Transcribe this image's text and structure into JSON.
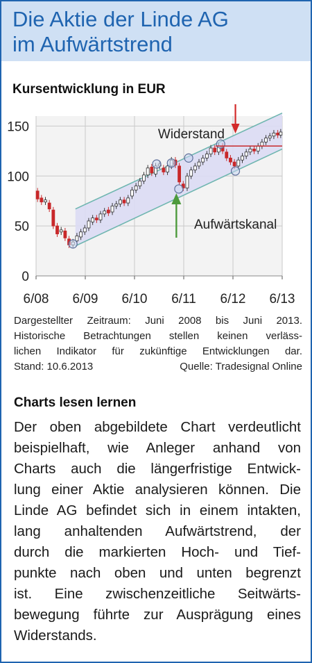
{
  "header": {
    "title_line1": "Die Aktie der Linde AG",
    "title_line2": "im Aufwärtstrend"
  },
  "chart_title": "Kursentwicklung in EUR",
  "chart_data": {
    "type": "candlestick",
    "title": "Kursentwicklung in EUR",
    "x_ticks": [
      "6/08",
      "6/09",
      "6/10",
      "6/11",
      "6/12",
      "6/13"
    ],
    "y_ticks": [
      "0",
      "50",
      "100",
      "150"
    ],
    "ylim": [
      0,
      160
    ],
    "xlim": [
      2008.45,
      2013.45
    ],
    "grid": true,
    "annotations": {
      "resistance_label": "Widerstand",
      "channel_label": "Aufwärtskanal",
      "resistance_level": 130
    },
    "channel": {
      "upper": [
        [
          2009.25,
          67
        ],
        [
          2013.45,
          163
        ]
      ],
      "lower": [
        [
          2009.25,
          30
        ],
        [
          2013.45,
          127
        ]
      ]
    },
    "pivots": [
      {
        "x": 2009.2,
        "y": 32
      },
      {
        "x": 2010.9,
        "y": 112
      },
      {
        "x": 2011.2,
        "y": 113
      },
      {
        "x": 2011.55,
        "y": 118
      },
      {
        "x": 2011.35,
        "y": 87
      },
      {
        "x": 2012.2,
        "y": 132
      },
      {
        "x": 2012.5,
        "y": 105
      }
    ],
    "candles": [
      {
        "x": 2008.48,
        "o": 85,
        "c": 77
      },
      {
        "x": 2008.56,
        "o": 78,
        "c": 74
      },
      {
        "x": 2008.64,
        "o": 74,
        "c": 76
      },
      {
        "x": 2008.72,
        "o": 73,
        "c": 67
      },
      {
        "x": 2008.8,
        "o": 66,
        "c": 50
      },
      {
        "x": 2008.88,
        "o": 50,
        "c": 42
      },
      {
        "x": 2008.96,
        "o": 44,
        "c": 46
      },
      {
        "x": 2009.04,
        "o": 45,
        "c": 38
      },
      {
        "x": 2009.12,
        "o": 37,
        "c": 31
      },
      {
        "x": 2009.2,
        "o": 31,
        "c": 34
      },
      {
        "x": 2009.28,
        "o": 35,
        "c": 40
      },
      {
        "x": 2009.36,
        "o": 39,
        "c": 44
      },
      {
        "x": 2009.44,
        "o": 44,
        "c": 48
      },
      {
        "x": 2009.52,
        "o": 48,
        "c": 55
      },
      {
        "x": 2009.6,
        "o": 54,
        "c": 58
      },
      {
        "x": 2009.68,
        "o": 58,
        "c": 56
      },
      {
        "x": 2009.76,
        "o": 56,
        "c": 62
      },
      {
        "x": 2009.84,
        "o": 62,
        "c": 65
      },
      {
        "x": 2009.92,
        "o": 66,
        "c": 63
      },
      {
        "x": 2010.0,
        "o": 64,
        "c": 70
      },
      {
        "x": 2010.08,
        "o": 70,
        "c": 72
      },
      {
        "x": 2010.16,
        "o": 72,
        "c": 76
      },
      {
        "x": 2010.24,
        "o": 76,
        "c": 73
      },
      {
        "x": 2010.32,
        "o": 73,
        "c": 78
      },
      {
        "x": 2010.4,
        "o": 80,
        "c": 86
      },
      {
        "x": 2010.48,
        "o": 86,
        "c": 90
      },
      {
        "x": 2010.56,
        "o": 90,
        "c": 95
      },
      {
        "x": 2010.64,
        "o": 95,
        "c": 101
      },
      {
        "x": 2010.72,
        "o": 101,
        "c": 108
      },
      {
        "x": 2010.8,
        "o": 109,
        "c": 103
      },
      {
        "x": 2010.88,
        "o": 102,
        "c": 110
      },
      {
        "x": 2010.96,
        "o": 110,
        "c": 112
      },
      {
        "x": 2011.04,
        "o": 108,
        "c": 104
      },
      {
        "x": 2011.12,
        "o": 104,
        "c": 110
      },
      {
        "x": 2011.2,
        "o": 110,
        "c": 116
      },
      {
        "x": 2011.28,
        "o": 116,
        "c": 111
      },
      {
        "x": 2011.36,
        "o": 110,
        "c": 94
      },
      {
        "x": 2011.44,
        "o": 92,
        "c": 88
      },
      {
        "x": 2011.52,
        "o": 88,
        "c": 100
      },
      {
        "x": 2011.6,
        "o": 100,
        "c": 106
      },
      {
        "x": 2011.68,
        "o": 106,
        "c": 110
      },
      {
        "x": 2011.76,
        "o": 110,
        "c": 114
      },
      {
        "x": 2011.84,
        "o": 114,
        "c": 118
      },
      {
        "x": 2011.92,
        "o": 118,
        "c": 122
      },
      {
        "x": 2012.0,
        "o": 122,
        "c": 128
      },
      {
        "x": 2012.08,
        "o": 128,
        "c": 124
      },
      {
        "x": 2012.16,
        "o": 124,
        "c": 130
      },
      {
        "x": 2012.24,
        "o": 130,
        "c": 125
      },
      {
        "x": 2012.32,
        "o": 124,
        "c": 118
      },
      {
        "x": 2012.4,
        "o": 118,
        "c": 114
      },
      {
        "x": 2012.48,
        "o": 114,
        "c": 110
      },
      {
        "x": 2012.56,
        "o": 110,
        "c": 116
      },
      {
        "x": 2012.64,
        "o": 116,
        "c": 120
      },
      {
        "x": 2012.72,
        "o": 120,
        "c": 124
      },
      {
        "x": 2012.8,
        "o": 124,
        "c": 127
      },
      {
        "x": 2012.88,
        "o": 127,
        "c": 125
      },
      {
        "x": 2012.96,
        "o": 125,
        "c": 130
      },
      {
        "x": 2013.04,
        "o": 130,
        "c": 134
      },
      {
        "x": 2013.12,
        "o": 134,
        "c": 138
      },
      {
        "x": 2013.2,
        "o": 138,
        "c": 140
      },
      {
        "x": 2013.28,
        "o": 140,
        "c": 143
      },
      {
        "x": 2013.36,
        "o": 143,
        "c": 141
      },
      {
        "x": 2013.42,
        "o": 141,
        "c": 144
      }
    ]
  },
  "caption": {
    "line1": "Dargestellter Zeitraum: Juni 2008 bis Juni 2013.",
    "line2": "Historische Betrachtungen stellen keinen verläss-",
    "line3": "lichen Indikator für zukünftige Entwicklungen dar.",
    "stand": "Stand: 10.6.2013",
    "source": "Quelle: Tradesignal Online"
  },
  "section": {
    "title": "Charts lesen lernen",
    "lines": [
      "Der oben abgebildete Chart verdeutlicht",
      "beispielhaft, wie Anleger anhand von",
      "Charts auch die längerfristige Entwick-",
      "lung einer Aktie analysieren können. Die",
      "Linde AG befindet sich in einem intakten,",
      "lang anhaltenden Aufwärtstrend, der",
      "durch die markierten Hoch- und Tief-",
      "punkte nach oben und unten begrenzt",
      "ist. Eine zwischenzeitliche Seitwärts-",
      "bewegung führte zur Ausprägung eines",
      "Widerstands."
    ]
  },
  "colors": {
    "brand_blue": "#1f64b0",
    "header_bg": "#cfe0f4",
    "channel_fill": "#dcdcf4",
    "channel_line": "#6fb6b0",
    "bear": "#c8282a",
    "bull_fill": "#ffffff",
    "arrow_red": "#d22a2a",
    "arrow_green": "#4d9a3c"
  }
}
